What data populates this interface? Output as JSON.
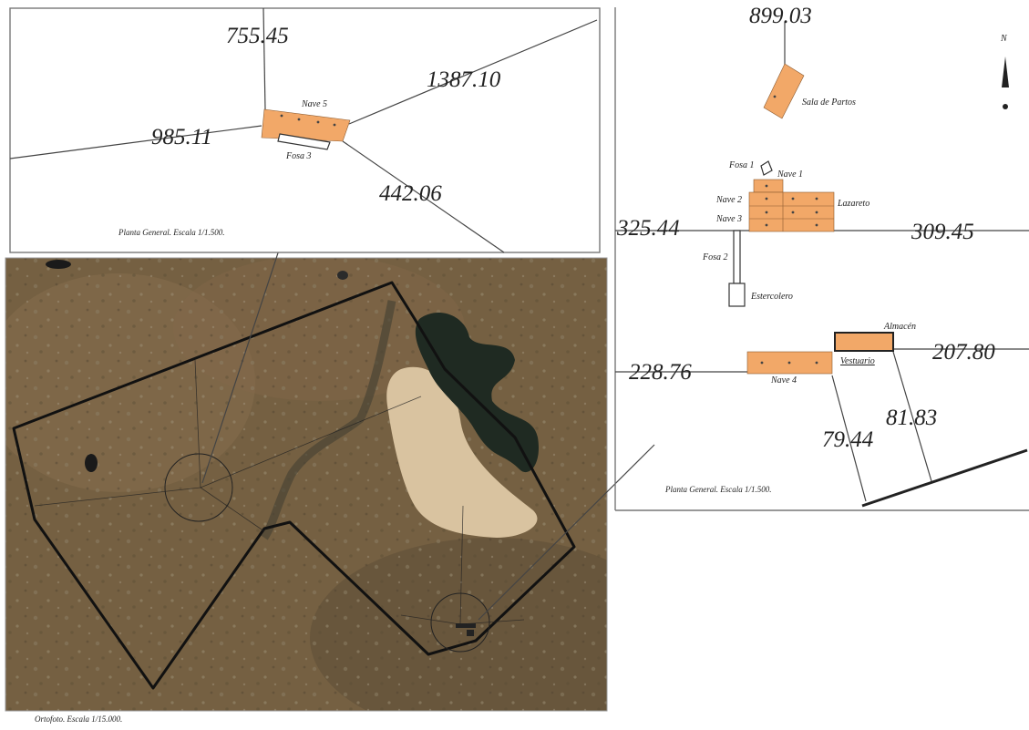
{
  "planta_general_1": {
    "caption": "Planta General. Escala 1/1.500.",
    "distances": [
      "755.45",
      "1387.10",
      "985.11",
      "442.06"
    ],
    "labels": {
      "nave5": "Nave 5",
      "fosa3": "Fosa 3"
    }
  },
  "planta_general_2": {
    "caption": "Planta General. Escala 1/1.500.",
    "distances": [
      "899.03",
      "325.44",
      "309.45",
      "228.76",
      "207.80",
      "81.83",
      "79.44"
    ],
    "labels": {
      "sala_partos": "Sala de Partos",
      "fosa1": "Fosa 1",
      "nave1": "Nave 1",
      "nave2": "Nave 2",
      "nave3": "Nave 3",
      "lazareto": "Lazareto",
      "fosa2": "Fosa 2",
      "estercolero": "Estercolero",
      "almacen": "Almacén",
      "vestuario": "Vestuario",
      "nave4": "Nave 4"
    },
    "north_arrow_letter": "N"
  },
  "ortofoto": {
    "caption": "Ortofoto. Escala 1/15.000."
  },
  "colors": {
    "building_fill": "#f2a868",
    "terrain": "#6e5a3e",
    "water": "#1f2a22",
    "dry_basin": "#d9c3a0",
    "boundary": "#111111"
  }
}
